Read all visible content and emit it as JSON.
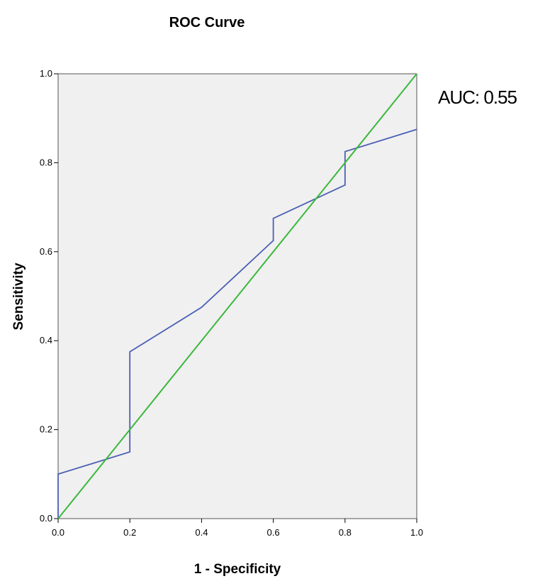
{
  "chart_data": {
    "type": "line",
    "title": "ROC Curve",
    "xlabel": "1 - Specificity",
    "ylabel": "Sensitivity",
    "xlim": [
      0,
      1
    ],
    "ylim": [
      0,
      1
    ],
    "x_ticks": [
      "0.0",
      "0.2",
      "0.4",
      "0.6",
      "0.8",
      "1.0"
    ],
    "y_ticks": [
      "0.0",
      "0.2",
      "0.4",
      "0.6",
      "0.8",
      "1.0"
    ],
    "annotation": "AUC: 0.55",
    "grid": false,
    "series": [
      {
        "color": "#4a5fb5",
        "x": [
          0.0,
          0.0,
          0.2,
          0.2,
          0.4,
          0.6,
          0.6,
          0.8,
          0.8,
          1.0
        ],
        "y": [
          0.0,
          0.1,
          0.15,
          0.375,
          0.475,
          0.625,
          0.675,
          0.75,
          0.825,
          0.875
        ]
      },
      {
        "color": "#3cb83c",
        "x": [
          0.0,
          1.0
        ],
        "y": [
          0.0,
          1.0
        ]
      }
    ]
  },
  "colors": {
    "plot_background": "#f0f0f0",
    "frame": "#555555"
  }
}
